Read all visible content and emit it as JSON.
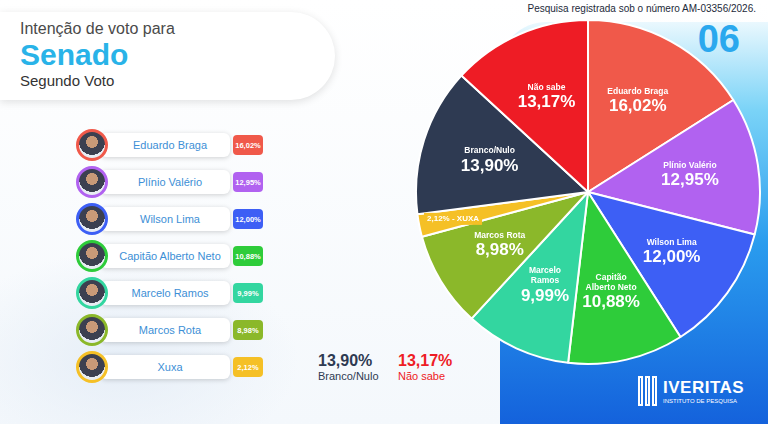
{
  "header": {
    "title_prefix": "Intenção de voto para",
    "title": "Senado",
    "subtitle": "Segundo Voto",
    "registration": "Pesquisa registrada sob o número AM-03356/2026.",
    "page": "06"
  },
  "ranking": [
    {
      "name": "Eduardo Braga",
      "label": "16,02%",
      "color": "#f0594a"
    },
    {
      "name": "Plínio Valério",
      "label": "12,95%",
      "color": "#b162f0"
    },
    {
      "name": "Wilson Lima",
      "label": "12,00%",
      "color": "#3d5ff5"
    },
    {
      "name": "Capitão Alberto Neto",
      "label": "10,88%",
      "color": "#2ecc3a"
    },
    {
      "name": "Marcelo Ramos",
      "label": "9,99%",
      "color": "#33d6a0"
    },
    {
      "name": "Marcos Rota",
      "label": "8,98%",
      "color": "#8bb82a"
    },
    {
      "name": "Xuxa",
      "label": "2,12%",
      "color": "#f5c026"
    }
  ],
  "summary": [
    {
      "label": "13,90%",
      "name": "Branco/Nulo",
      "color": "#2e3a52"
    },
    {
      "label": "13,17%",
      "name": "Não sabe",
      "color": "#ee1c25"
    }
  ],
  "chart_data": {
    "type": "pie",
    "categories": [
      "Eduardo Braga",
      "Plínio Valério",
      "Wilson Lima",
      "Capitão Alberto Neto",
      "Marcelo Ramos",
      "Marcos Rota",
      "2,12% - XUXA",
      "Branco/Nulo",
      "Não sabe"
    ],
    "values": [
      16.02,
      12.95,
      12.0,
      10.88,
      9.99,
      8.98,
      2.12,
      13.9,
      13.17
    ],
    "value_labels": [
      "16,02%",
      "12,95%",
      "12,00%",
      "10,88%",
      "9,99%",
      "8,98%",
      null,
      "13,90%",
      "13,17%"
    ],
    "colors": [
      "#f0594a",
      "#b162f0",
      "#3d5ff5",
      "#2ecc3a",
      "#33d6a0",
      "#8bb82a",
      "#f5c026",
      "#2e3a52",
      "#ee1c25"
    ],
    "data_labels": true
  },
  "logo": {
    "name": "IVERITAS",
    "tagline": "INSTITUTO DE PESQUISA"
  }
}
